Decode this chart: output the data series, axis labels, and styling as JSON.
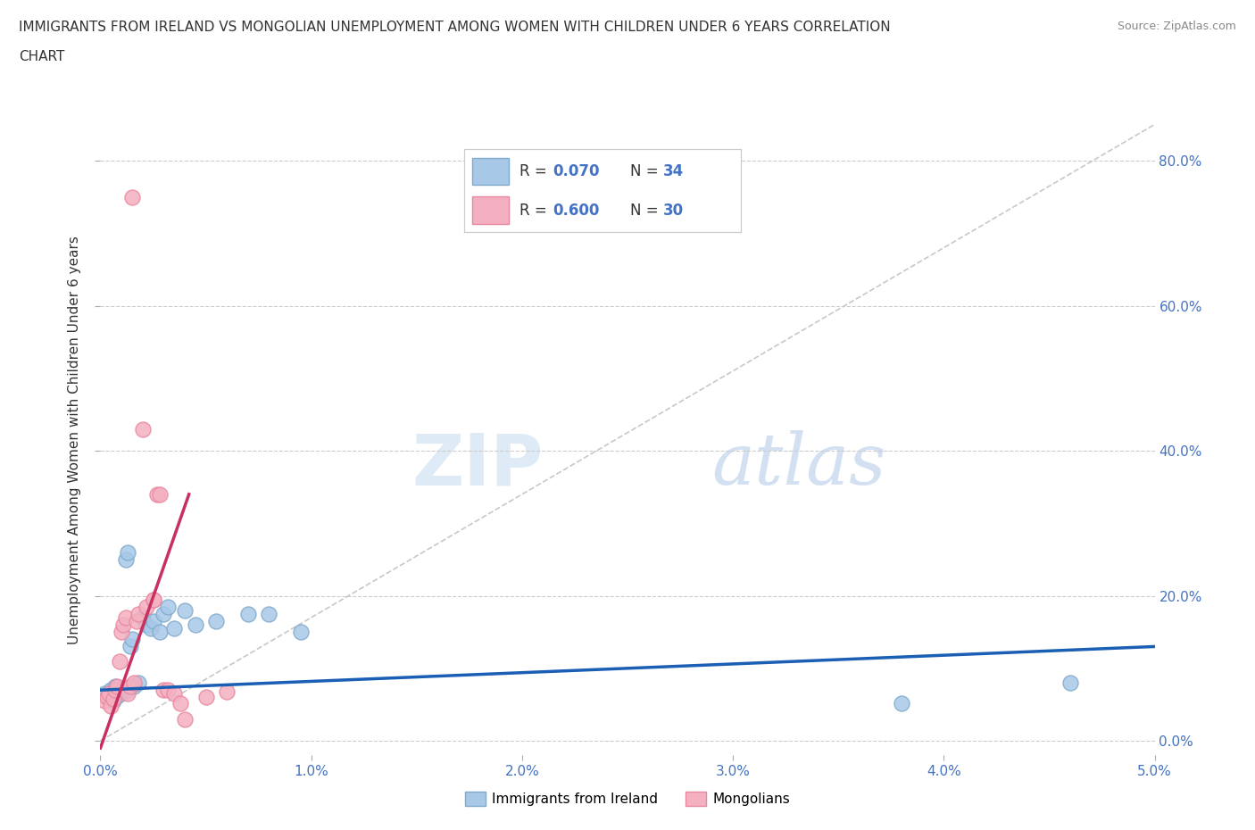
{
  "title_line1": "IMMIGRANTS FROM IRELAND VS MONGOLIAN UNEMPLOYMENT AMONG WOMEN WITH CHILDREN UNDER 6 YEARS CORRELATION",
  "title_line2": "CHART",
  "source": "Source: ZipAtlas.com",
  "ylabel": "Unemployment Among Women with Children Under 6 years",
  "xlim": [
    0,
    0.05
  ],
  "ylim": [
    -0.02,
    0.85
  ],
  "xticks": [
    0.0,
    0.01,
    0.02,
    0.03,
    0.04,
    0.05
  ],
  "xtick_labels": [
    "0.0%",
    "1.0%",
    "2.0%",
    "3.0%",
    "4.0%",
    "5.0%"
  ],
  "yticks": [
    0.0,
    0.2,
    0.4,
    0.6,
    0.8
  ],
  "ytick_labels": [
    "0.0%",
    "20.0%",
    "40.0%",
    "60.0%",
    "80.0%"
  ],
  "grid_color": "#cccccc",
  "watermark_zip": "ZIP",
  "watermark_atlas": "atlas",
  "blue_color": "#a8c8e8",
  "pink_color": "#f4b0c0",
  "blue_edge": "#80aacc",
  "pink_edge": "#e888a0",
  "trend_blue": "#1a5fb4",
  "trend_pink": "#c83060",
  "ref_line_color": "#c8c8c8",
  "legend_label_blue": "Immigrants from Ireland",
  "legend_label_pink": "Mongolians",
  "blue_x": [
    0.0002,
    0.0003,
    0.0005,
    0.0006,
    0.0007,
    0.0007,
    0.0008,
    0.0009,
    0.001,
    0.001,
    0.0011,
    0.0012,
    0.0013,
    0.0013,
    0.0014,
    0.0015,
    0.0016,
    0.0018,
    0.002,
    0.0022,
    0.0024,
    0.0025,
    0.0028,
    0.003,
    0.0032,
    0.0035,
    0.004,
    0.0045,
    0.0055,
    0.007,
    0.008,
    0.0095,
    0.038,
    0.046
  ],
  "blue_y": [
    0.065,
    0.06,
    0.07,
    0.055,
    0.065,
    0.075,
    0.062,
    0.068,
    0.07,
    0.065,
    0.072,
    0.25,
    0.26,
    0.07,
    0.13,
    0.14,
    0.075,
    0.08,
    0.17,
    0.16,
    0.155,
    0.165,
    0.15,
    0.175,
    0.185,
    0.155,
    0.18,
    0.16,
    0.165,
    0.175,
    0.175,
    0.15,
    0.052,
    0.08
  ],
  "pink_x": [
    0.0002,
    0.0003,
    0.0004,
    0.0005,
    0.0006,
    0.0007,
    0.0008,
    0.0009,
    0.001,
    0.0011,
    0.0012,
    0.0013,
    0.0014,
    0.0015,
    0.0016,
    0.0017,
    0.0018,
    0.002,
    0.0022,
    0.0025,
    0.0025,
    0.0027,
    0.0028,
    0.003,
    0.0032,
    0.0035,
    0.0038,
    0.004,
    0.005,
    0.006
  ],
  "pink_y": [
    0.055,
    0.06,
    0.065,
    0.048,
    0.058,
    0.07,
    0.075,
    0.11,
    0.15,
    0.16,
    0.17,
    0.065,
    0.075,
    0.75,
    0.08,
    0.165,
    0.175,
    0.43,
    0.185,
    0.195,
    0.195,
    0.34,
    0.34,
    0.07,
    0.07,
    0.065,
    0.052,
    0.03,
    0.06,
    0.068
  ],
  "blue_trend_x": [
    0.0,
    0.05
  ],
  "blue_trend_y": [
    0.07,
    0.13
  ],
  "pink_trend_x": [
    0.0,
    0.0042
  ],
  "pink_trend_y": [
    -0.01,
    0.34
  ]
}
